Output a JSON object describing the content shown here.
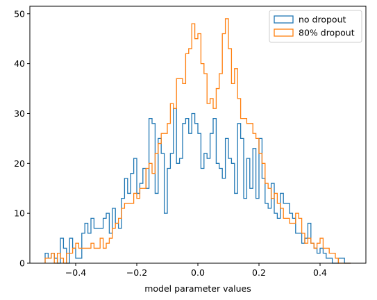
{
  "chart_data": {
    "type": "histogram",
    "xlabel": "model parameter values",
    "ylabel": "",
    "xlim": [
      -0.55,
      0.55
    ],
    "ylim": [
      0,
      51.5
    ],
    "xticks": [
      -0.4,
      -0.2,
      0.0,
      0.2,
      0.4
    ],
    "xtick_labels": [
      "−0.4",
      "−0.2",
      "0.0",
      "0.2",
      "0.4"
    ],
    "yticks": [
      0,
      10,
      20,
      30,
      40,
      50
    ],
    "ytick_labels": [
      "0",
      "10",
      "20",
      "30",
      "40",
      "50"
    ],
    "grid": false,
    "legend_position": "top-right",
    "series": [
      {
        "name": "no dropout",
        "color": "#1f77b4",
        "bin_start": -0.5,
        "bin_width": 0.01,
        "counts": [
          2,
          1,
          2,
          1,
          0,
          5,
          3,
          0,
          5,
          3,
          1,
          1,
          6,
          8,
          6,
          9,
          7,
          7,
          7,
          9,
          10,
          6,
          11,
          8,
          7,
          13,
          17,
          14,
          18,
          21,
          14,
          16,
          19,
          15,
          29,
          28,
          14,
          25,
          22,
          10,
          19,
          22,
          31,
          20,
          21,
          28,
          29,
          26,
          30,
          28,
          26,
          19,
          22,
          21,
          26,
          29,
          20,
          19,
          17,
          25,
          21,
          20,
          14,
          28,
          25,
          13,
          21,
          15,
          23,
          13,
          25,
          17,
          12,
          11,
          16,
          10,
          9,
          14,
          12,
          12,
          10,
          9,
          6,
          6,
          4,
          5,
          8,
          4,
          3,
          2,
          3,
          2,
          1,
          1,
          0,
          0,
          1,
          1,
          0,
          0
        ]
      },
      {
        "name": "80% dropout",
        "color": "#ff7f0e",
        "bin_start": -0.5,
        "bin_width": 0.01,
        "counts": [
          1,
          1,
          2,
          0,
          2,
          1,
          0,
          2,
          2,
          3,
          4,
          3,
          3,
          3,
          3,
          4,
          3,
          3,
          5,
          3,
          4,
          5,
          7,
          8,
          9,
          11,
          12,
          12,
          12,
          14,
          13,
          15,
          15,
          19,
          20,
          18,
          22,
          24,
          26,
          26,
          28,
          32,
          31,
          37,
          37,
          36,
          42,
          43,
          48,
          45,
          46,
          40,
          38,
          32,
          33,
          31,
          35,
          38,
          46,
          49,
          43,
          36,
          39,
          33,
          29,
          29,
          28,
          28,
          26,
          25,
          22,
          20,
          16,
          15,
          13,
          14,
          12,
          11,
          9,
          9,
          8,
          8,
          10,
          9,
          6,
          4,
          5,
          4,
          3,
          4,
          5,
          3,
          3,
          2,
          2,
          1,
          0,
          0,
          0,
          0
        ]
      }
    ]
  }
}
